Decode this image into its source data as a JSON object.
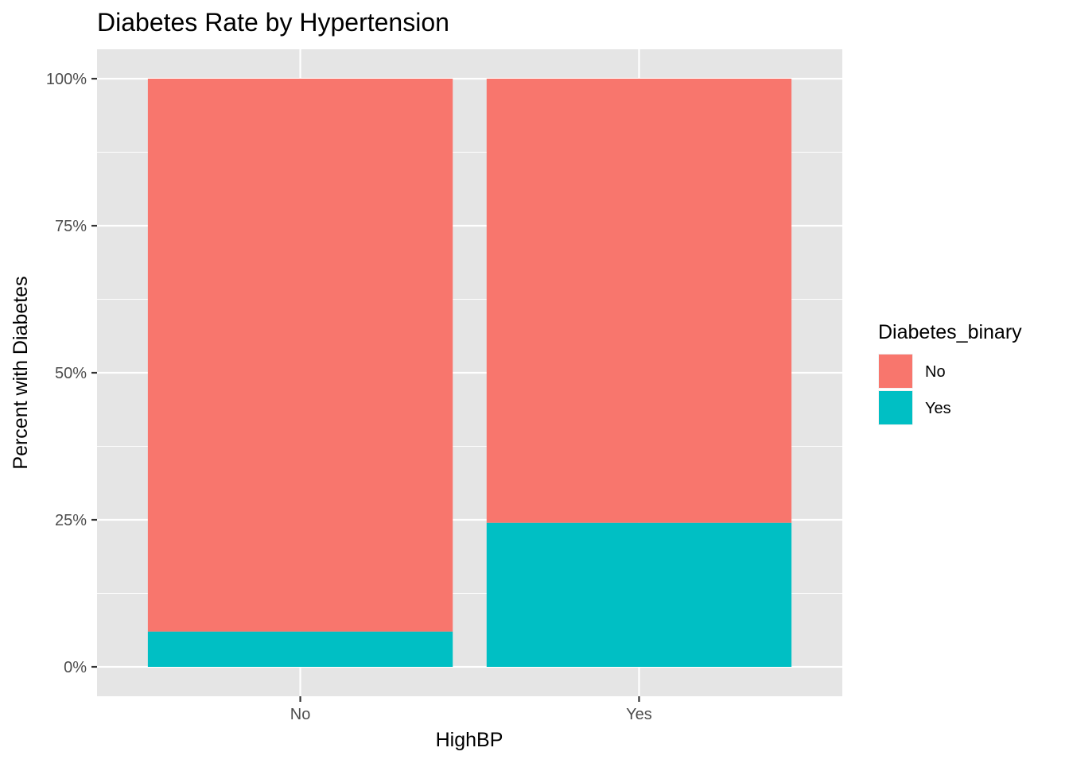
{
  "chart_data": {
    "type": "bar",
    "stacked": true,
    "position": "fill",
    "title": "Diabetes Rate by Hypertension",
    "xlabel": "HighBP",
    "ylabel": "Percent with Diabetes",
    "categories": [
      "No",
      "Yes"
    ],
    "series": [
      {
        "name": "No",
        "values": [
          0.94,
          0.755
        ],
        "color": "#F8766D"
      },
      {
        "name": "Yes",
        "values": [
          0.06,
          0.245
        ],
        "color": "#00BFC4"
      }
    ],
    "ylim": [
      -0.05,
      1.05
    ],
    "yticks": [
      0,
      0.25,
      0.5,
      0.75,
      1.0
    ],
    "ytick_labels": [
      "0%",
      "25%",
      "50%",
      "75%",
      "100%"
    ],
    "grid": true,
    "panel_background": "#E5E5E5",
    "legend": {
      "title": "Diabetes_binary",
      "placement": "right",
      "entries": [
        "No",
        "Yes"
      ]
    }
  }
}
